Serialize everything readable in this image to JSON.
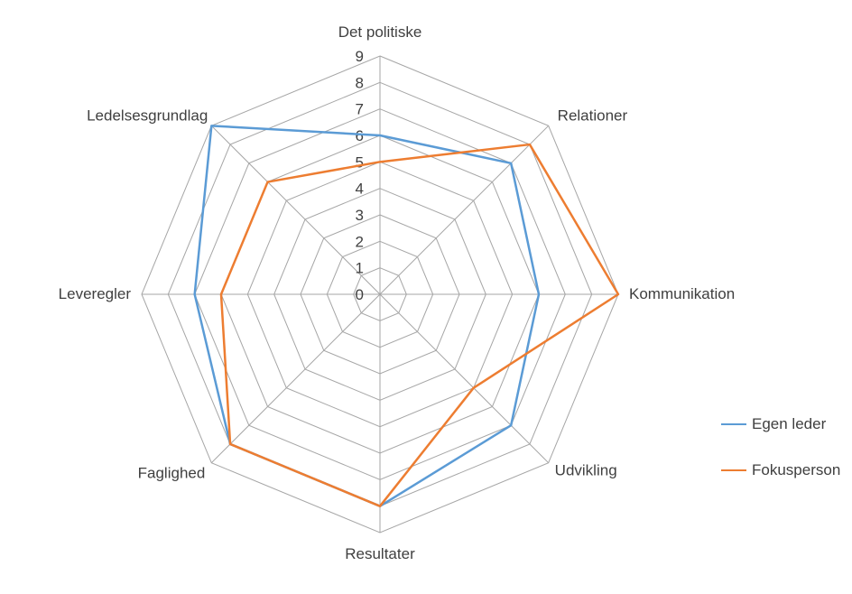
{
  "chart_data": {
    "type": "radar",
    "categories": [
      "Det politiske",
      "Relationer",
      "Kommunikation",
      "Udvikling",
      "Resultater",
      "Faglighed",
      "Leveregler",
      "Ledelsesgrundlag"
    ],
    "series": [
      {
        "name": "Egen leder",
        "color": "#5B9BD5",
        "values": [
          6,
          7,
          6,
          7,
          8,
          8,
          7,
          9
        ]
      },
      {
        "name": "Fokusperson",
        "color": "#ED7D31",
        "values": [
          5,
          8,
          9,
          5,
          8,
          8,
          6,
          6
        ]
      }
    ],
    "axis": {
      "min": 0,
      "max": 9,
      "step": 1,
      "tick_labels": [
        "0",
        "1",
        "2",
        "3",
        "4",
        "5",
        "6",
        "7",
        "8",
        "9"
      ]
    },
    "title": "",
    "grid": "on",
    "grid_color": "#A6A6A6",
    "text_color": "#3F3F3F",
    "legend_position": "right"
  }
}
